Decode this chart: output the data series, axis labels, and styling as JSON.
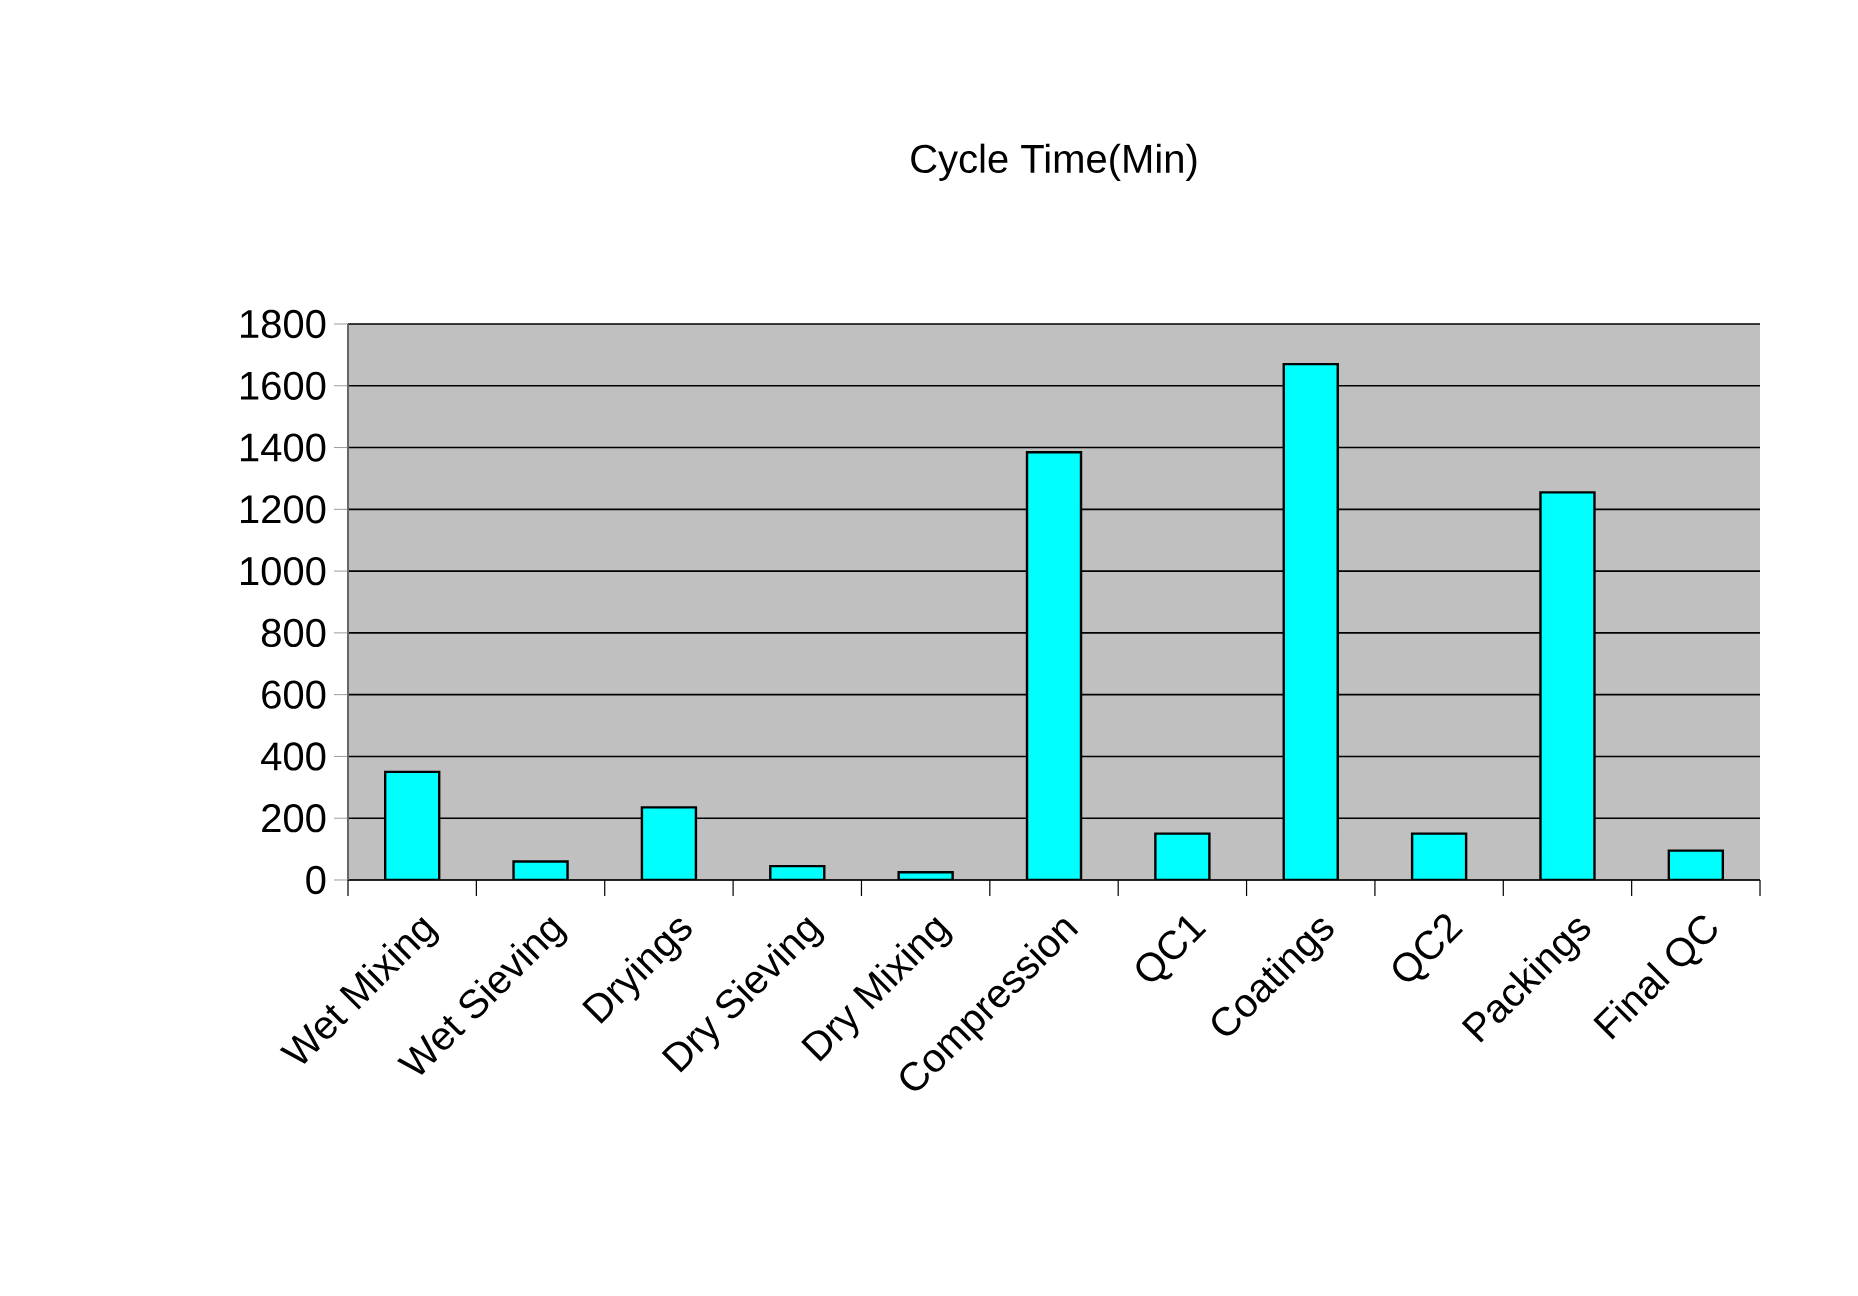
{
  "chart_data": {
    "type": "bar",
    "title": "Cycle Time(Min)",
    "categories": [
      "Wet Mixing",
      "Wet Sieving",
      "Dryings",
      "Dry Sieving",
      "Dry Mixing",
      "Compression",
      "QC1",
      "Coatings",
      "QC2",
      "Packings",
      "Final QC"
    ],
    "values": [
      350,
      60,
      235,
      45,
      25,
      1385,
      150,
      1670,
      150,
      1255,
      95
    ],
    "color": "#00ffff",
    "ylim": [
      0,
      1800
    ],
    "yticks": [
      0,
      200,
      400,
      600,
      800,
      1000,
      1200,
      1400,
      1600,
      1800
    ],
    "grid": "y"
  }
}
